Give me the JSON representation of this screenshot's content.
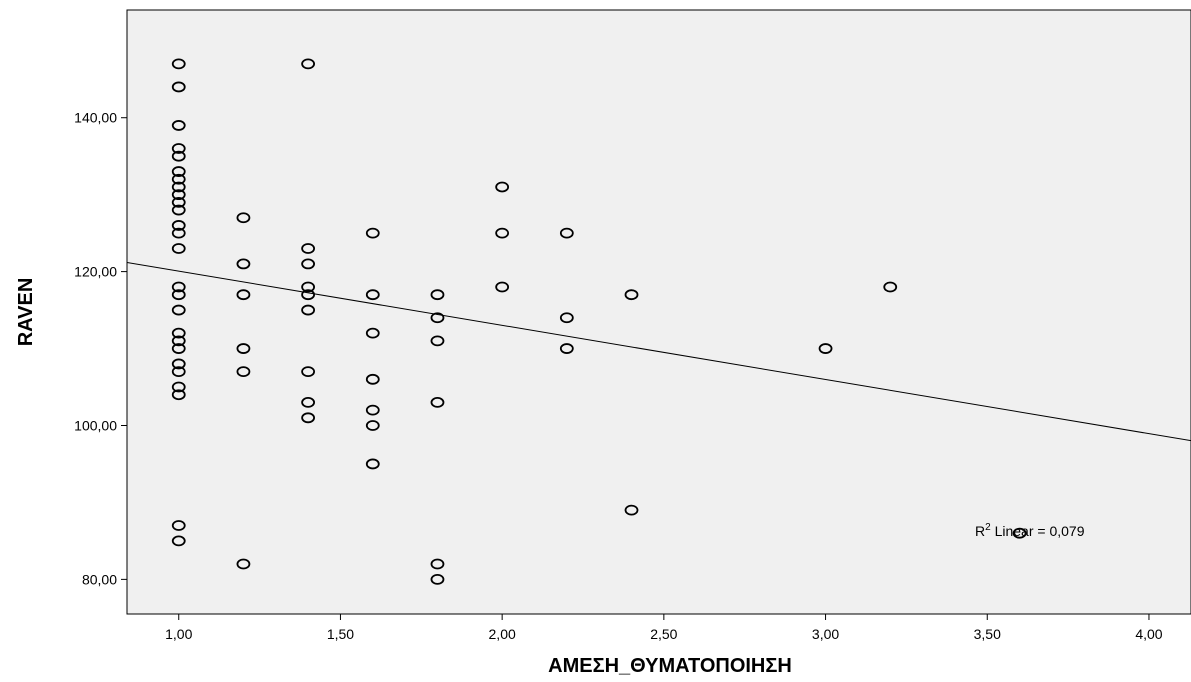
{
  "chart_data": {
    "type": "scatter",
    "xlabel": "ΑΜΕΣΗ_ΘΥΜΑΤΟΠΟΙΗΣΗ",
    "ylabel": "RAVEN",
    "xlim": [
      0.84,
      4.13
    ],
    "ylim": [
      75.5,
      154
    ],
    "x_ticks": [
      1,
      1.5,
      2,
      2.5,
      3,
      3.5,
      4
    ],
    "x_tick_labels": [
      "1,00",
      "1,50",
      "2,00",
      "2,50",
      "3,00",
      "3,50",
      "4,00"
    ],
    "y_ticks": [
      80,
      100,
      120,
      140
    ],
    "y_tick_labels": [
      "80,00",
      "100,00",
      "120,00",
      "140,00"
    ],
    "grid": false,
    "plot_background": "#f0f0f0",
    "marker_color": "#000000",
    "points": [
      [
        1.0,
        147
      ],
      [
        1.0,
        144
      ],
      [
        1.0,
        139
      ],
      [
        1.0,
        136
      ],
      [
        1.0,
        135
      ],
      [
        1.0,
        133
      ],
      [
        1.0,
        132
      ],
      [
        1.0,
        131
      ],
      [
        1.0,
        130
      ],
      [
        1.0,
        129
      ],
      [
        1.0,
        128
      ],
      [
        1.0,
        126
      ],
      [
        1.0,
        125
      ],
      [
        1.0,
        123
      ],
      [
        1.0,
        118
      ],
      [
        1.0,
        117
      ],
      [
        1.0,
        115
      ],
      [
        1.0,
        112
      ],
      [
        1.0,
        111
      ],
      [
        1.0,
        110
      ],
      [
        1.0,
        108
      ],
      [
        1.0,
        107
      ],
      [
        1.0,
        105
      ],
      [
        1.0,
        104
      ],
      [
        1.0,
        87
      ],
      [
        1.0,
        85
      ],
      [
        1.2,
        127
      ],
      [
        1.2,
        121
      ],
      [
        1.2,
        117
      ],
      [
        1.2,
        110
      ],
      [
        1.2,
        107
      ],
      [
        1.2,
        82
      ],
      [
        1.4,
        147
      ],
      [
        1.4,
        123
      ],
      [
        1.4,
        121
      ],
      [
        1.4,
        118
      ],
      [
        1.4,
        117
      ],
      [
        1.4,
        115
      ],
      [
        1.4,
        107
      ],
      [
        1.4,
        103
      ],
      [
        1.4,
        101
      ],
      [
        1.6,
        125
      ],
      [
        1.6,
        117
      ],
      [
        1.6,
        112
      ],
      [
        1.6,
        106
      ],
      [
        1.6,
        102
      ],
      [
        1.6,
        100
      ],
      [
        1.6,
        95
      ],
      [
        1.8,
        117
      ],
      [
        1.8,
        114
      ],
      [
        1.8,
        111
      ],
      [
        1.8,
        103
      ],
      [
        1.8,
        82
      ],
      [
        1.8,
        80
      ],
      [
        2.0,
        131
      ],
      [
        2.0,
        125
      ],
      [
        2.0,
        118
      ],
      [
        2.2,
        125
      ],
      [
        2.2,
        114
      ],
      [
        2.2,
        110
      ],
      [
        2.4,
        117
      ],
      [
        2.4,
        89
      ],
      [
        3.0,
        110
      ],
      [
        3.2,
        118
      ],
      [
        3.6,
        86
      ]
    ],
    "fit_line": {
      "type": "linear",
      "intercept": 127.1,
      "slope": -7.04
    },
    "annotation": {
      "prefix": "R",
      "sup": "2",
      "text": " Linear = 0,079"
    }
  }
}
